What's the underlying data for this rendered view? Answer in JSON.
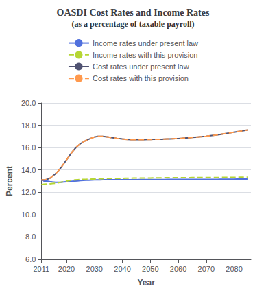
{
  "chart_data": {
    "type": "line",
    "title": "OASDI Cost Rates and Income Rates",
    "subtitle": "(as a percentage of taxable payroll)",
    "xlabel": "Year",
    "ylabel": "Percent",
    "xlim": [
      2011,
      2086
    ],
    "xticks": [
      2011,
      2020,
      2030,
      2040,
      2050,
      2060,
      2070,
      2080
    ],
    "ylim": [
      6.0,
      20.0
    ],
    "yticks": [
      {
        "value": 6.0,
        "label": "6.0"
      },
      {
        "value": 8.0,
        "label": "8.0"
      },
      {
        "value": 10.0,
        "label": "10.0"
      },
      {
        "value": 12.0,
        "label": "12.0"
      },
      {
        "value": 14.0,
        "label": "14.0"
      },
      {
        "value": 16.0,
        "label": "16.0"
      },
      {
        "value": 18.0,
        "label": "18.0"
      },
      {
        "value": 20.0,
        "label": "20.0"
      }
    ],
    "grid": "y",
    "legend": "top",
    "x": [
      2011,
      2012,
      2013,
      2014,
      2015,
      2016,
      2017,
      2018,
      2019,
      2020,
      2021,
      2022,
      2023,
      2024,
      2025,
      2026,
      2027,
      2028,
      2029,
      2030,
      2031,
      2032,
      2033,
      2034,
      2035,
      2036,
      2037,
      2038,
      2039,
      2040,
      2041,
      2042,
      2043,
      2044,
      2045,
      2046,
      2047,
      2048,
      2049,
      2050,
      2051,
      2052,
      2053,
      2054,
      2055,
      2056,
      2057,
      2058,
      2059,
      2060,
      2061,
      2062,
      2063,
      2064,
      2065,
      2066,
      2067,
      2068,
      2069,
      2070,
      2071,
      2072,
      2073,
      2074,
      2075,
      2076,
      2077,
      2078,
      2079,
      2080,
      2081,
      2082,
      2083,
      2084,
      2085
    ],
    "series": [
      {
        "name": "Income rates under present law",
        "line_style": "solid",
        "values": [
          13.1,
          13.0,
          13.0,
          12.95,
          12.92,
          12.9,
          12.9,
          12.9,
          12.92,
          12.94,
          12.96,
          12.98,
          13.0,
          13.02,
          13.04,
          13.06,
          13.07,
          13.08,
          13.09,
          13.1,
          13.11,
          13.11,
          13.12,
          13.13,
          13.13,
          13.13,
          13.13,
          13.13,
          13.13,
          13.13,
          13.13,
          13.13,
          13.13,
          13.13,
          13.13,
          13.14,
          13.14,
          13.14,
          13.14,
          13.14,
          13.14,
          13.14,
          13.14,
          13.14,
          13.14,
          13.15,
          13.15,
          13.15,
          13.15,
          13.15,
          13.15,
          13.15,
          13.15,
          13.15,
          13.15,
          13.15,
          13.15,
          13.16,
          13.16,
          13.16,
          13.16,
          13.16,
          13.16,
          13.16,
          13.17,
          13.17,
          13.17,
          13.17,
          13.17,
          13.17,
          13.18,
          13.18,
          13.18,
          13.18,
          13.18
        ]
      },
      {
        "name": "Income rates with this provision",
        "line_style": "dashed",
        "values": [
          12.7,
          12.72,
          12.74,
          12.76,
          12.78,
          12.8,
          12.85,
          12.9,
          12.95,
          13.0,
          13.05,
          13.08,
          13.1,
          13.12,
          13.14,
          13.15,
          13.16,
          13.17,
          13.18,
          13.19,
          13.2,
          13.21,
          13.22,
          13.23,
          13.24,
          13.24,
          13.24,
          13.25,
          13.25,
          13.25,
          13.26,
          13.26,
          13.26,
          13.27,
          13.27,
          13.27,
          13.28,
          13.28,
          13.28,
          13.28,
          13.29,
          13.29,
          13.29,
          13.29,
          13.3,
          13.3,
          13.3,
          13.3,
          13.3,
          13.31,
          13.31,
          13.31,
          13.31,
          13.31,
          13.32,
          13.32,
          13.32,
          13.32,
          13.32,
          13.32,
          13.33,
          13.33,
          13.33,
          13.33,
          13.33,
          13.34,
          13.34,
          13.34,
          13.34,
          13.34,
          13.35,
          13.35,
          13.35,
          13.35,
          13.36
        ]
      },
      {
        "name": "Cost rates under present law",
        "line_style": "solid",
        "values": [
          13.1,
          13.1,
          13.15,
          13.25,
          13.45,
          13.65,
          13.9,
          14.2,
          14.55,
          14.9,
          15.25,
          15.6,
          15.9,
          16.15,
          16.35,
          16.5,
          16.65,
          16.75,
          16.85,
          16.95,
          17.0,
          17.0,
          17.0,
          16.98,
          16.95,
          16.9,
          16.87,
          16.83,
          16.8,
          16.77,
          16.75,
          16.73,
          16.72,
          16.72,
          16.72,
          16.72,
          16.72,
          16.72,
          16.73,
          16.73,
          16.74,
          16.74,
          16.75,
          16.75,
          16.76,
          16.77,
          16.78,
          16.79,
          16.8,
          16.81,
          16.83,
          16.85,
          16.87,
          16.89,
          16.91,
          16.93,
          16.95,
          16.97,
          16.99,
          17.01,
          17.05,
          17.08,
          17.11,
          17.15,
          17.18,
          17.22,
          17.26,
          17.3,
          17.34,
          17.38,
          17.42,
          17.46,
          17.5,
          17.54,
          17.58
        ]
      },
      {
        "name": "Cost rates with this provision",
        "line_style": "dashed",
        "values": [
          13.1,
          13.1,
          13.15,
          13.25,
          13.45,
          13.65,
          13.9,
          14.2,
          14.55,
          14.9,
          15.25,
          15.6,
          15.9,
          16.15,
          16.35,
          16.5,
          16.65,
          16.75,
          16.85,
          16.95,
          17.0,
          17.0,
          17.0,
          16.98,
          16.95,
          16.9,
          16.87,
          16.83,
          16.8,
          16.77,
          16.75,
          16.73,
          16.72,
          16.72,
          16.72,
          16.72,
          16.72,
          16.72,
          16.73,
          16.73,
          16.74,
          16.74,
          16.75,
          16.75,
          16.76,
          16.77,
          16.78,
          16.79,
          16.8,
          16.81,
          16.83,
          16.85,
          16.87,
          16.89,
          16.91,
          16.93,
          16.95,
          16.97,
          16.99,
          17.01,
          17.05,
          17.08,
          17.11,
          17.15,
          17.18,
          17.22,
          17.26,
          17.3,
          17.34,
          17.38,
          17.42,
          17.46,
          17.5,
          17.54,
          17.58
        ]
      }
    ]
  }
}
